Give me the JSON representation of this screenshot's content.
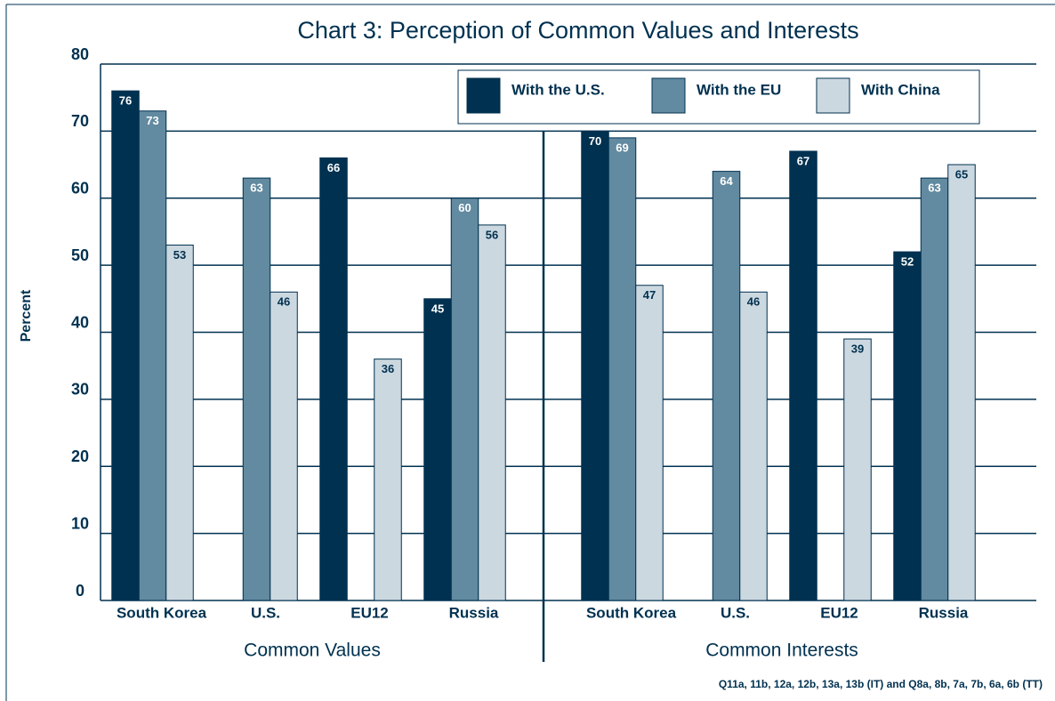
{
  "chart_data": {
    "type": "bar",
    "title": "Chart 3: Perception of Common Values and Interests",
    "y_label": "Percent",
    "categories": [
      "South Korea",
      "U.S.",
      "EU12",
      "Russia",
      "South Korea",
      "U.S.",
      "EU12",
      "Russia"
    ],
    "groups": [
      {
        "label": "Common Values",
        "size": 4
      },
      {
        "label": "Common Interests",
        "size": 4
      }
    ],
    "series": [
      {
        "name": "With the U.S.",
        "color": "#003150",
        "values": [
          76,
          null,
          66,
          45,
          70,
          null,
          67,
          52
        ]
      },
      {
        "name": "With the EU",
        "color": "#628aa0",
        "values": [
          73,
          63,
          null,
          60,
          69,
          64,
          null,
          63
        ]
      },
      {
        "name": "With China",
        "color": "#ccd8e0",
        "values": [
          53,
          46,
          36,
          56,
          47,
          46,
          39,
          65
        ]
      }
    ],
    "ylim": [
      0,
      80
    ],
    "yticks": [
      0,
      10,
      20,
      30,
      40,
      50,
      60,
      70,
      80
    ],
    "grid": true,
    "legend": "top-right",
    "footnote": "Q11a, 11b, 12a, 12b, 13a, 13b (IT) and Q8a, 8b, 7a, 7b, 6a, 6b (TT)"
  }
}
